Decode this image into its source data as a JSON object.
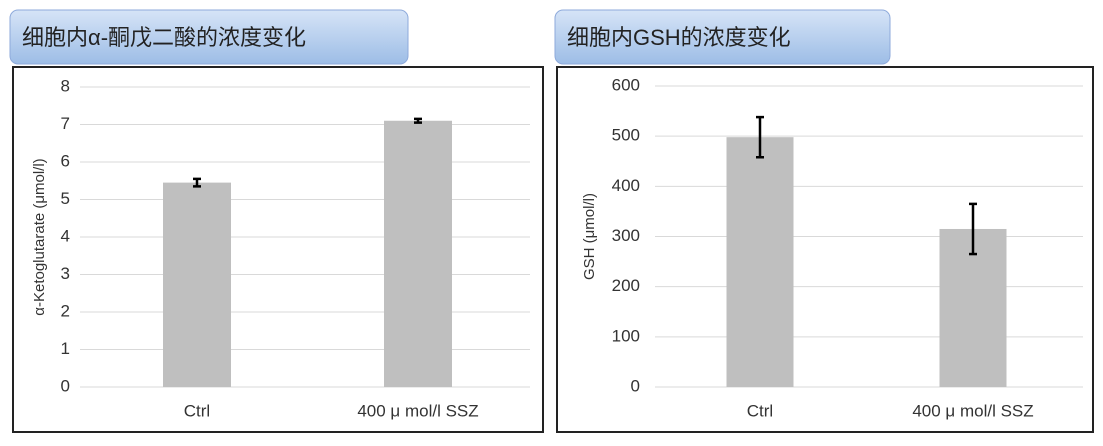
{
  "chart_data": [
    {
      "type": "bar",
      "title": "细胞内α-酮戊二酸的浓度变化",
      "ylabel": "α-Ketoglutarate (μmol/l)",
      "categories": [
        "Ctrl",
        "400 μ mol/l SSZ"
      ],
      "series": [
        {
          "color": "#bfbfbf",
          "values": [
            5.45,
            7.1
          ],
          "errors": [
            0.1,
            0.05
          ]
        }
      ],
      "ylim": [
        0,
        8
      ],
      "yticks": [
        0,
        1,
        2,
        3,
        4,
        5,
        6,
        7,
        8
      ],
      "grid": true
    },
    {
      "type": "bar",
      "title": "细胞内GSH的浓度变化",
      "ylabel": "GSH (μmol/l)",
      "categories": [
        "Ctrl",
        "400 μ mol/l SSZ"
      ],
      "series": [
        {
          "color": "#bfbfbf",
          "values": [
            498,
            315
          ],
          "errors": [
            40,
            50
          ]
        }
      ],
      "ylim": [
        0,
        600
      ],
      "yticks": [
        0,
        100,
        200,
        300,
        400,
        500,
        600
      ],
      "grid": true
    }
  ]
}
